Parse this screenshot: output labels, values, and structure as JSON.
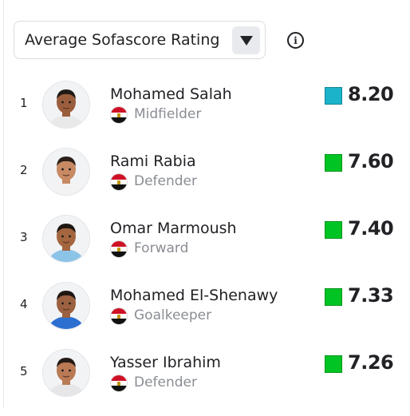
{
  "sort_select": {
    "label": "Average Sofascore Rating"
  },
  "colors": {
    "rating_top": "#1bb3c9",
    "rating_good": "#00c424"
  },
  "players": [
    {
      "rank": "1",
      "name": "Mohamed Salah",
      "position": "Midfielder",
      "rating": "8.20",
      "rating_color": "#1bb3c9",
      "jersey_color": "#e9e9ea",
      "skin": "#9a5e3c",
      "hair": "#1f1a17"
    },
    {
      "rank": "2",
      "name": "Rami Rabia",
      "position": "Defender",
      "rating": "7.60",
      "rating_color": "#00c424",
      "jersey_color": "#f3f3f3",
      "skin": "#c88a63",
      "hair": "#2a1f19"
    },
    {
      "rank": "3",
      "name": "Omar Marmoush",
      "position": "Forward",
      "rating": "7.40",
      "rating_color": "#00c424",
      "jersey_color": "#8cc4e8",
      "skin": "#a4663f",
      "hair": "#1e1713"
    },
    {
      "rank": "4",
      "name": "Mohamed El-Shenawy",
      "position": "Goalkeeper",
      "rating": "7.33",
      "rating_color": "#00c424",
      "jersey_color": "#2c6fd1",
      "skin": "#9b6141",
      "hair": "#1e1713"
    },
    {
      "rank": "5",
      "name": "Yasser Ibrahim",
      "position": "Defender",
      "rating": "7.26",
      "rating_color": "#00c424",
      "jersey_color": "#e6e6e8",
      "skin": "#b97a55",
      "hair": "#231a15"
    }
  ]
}
